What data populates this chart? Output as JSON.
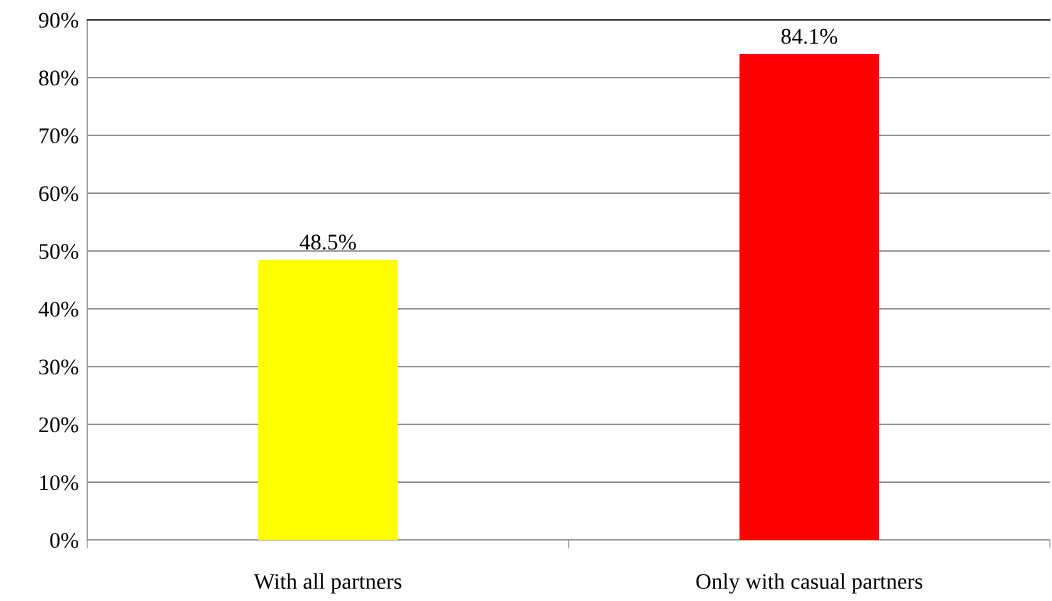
{
  "chart_data": {
    "type": "bar",
    "categories": [
      "With all partners",
      "Only with casual partners"
    ],
    "values": [
      48.5,
      84.1
    ],
    "colors": [
      "#ffff00",
      "#ff0000"
    ],
    "value_labels": [
      "48.5%",
      "84.1%"
    ],
    "ylim": [
      0,
      90
    ],
    "yticks": [
      {
        "value": 0,
        "label": "0%"
      },
      {
        "value": 10,
        "label": "10%"
      },
      {
        "value": 20,
        "label": "20%"
      },
      {
        "value": 30,
        "label": "30%"
      },
      {
        "value": 40,
        "label": "40%"
      },
      {
        "value": 50,
        "label": "50%"
      },
      {
        "value": 60,
        "label": "60%"
      },
      {
        "value": 70,
        "label": "70%"
      },
      {
        "value": 80,
        "label": "80%"
      },
      {
        "value": 90,
        "label": "90%"
      }
    ],
    "grid": "y",
    "legend": false
  }
}
